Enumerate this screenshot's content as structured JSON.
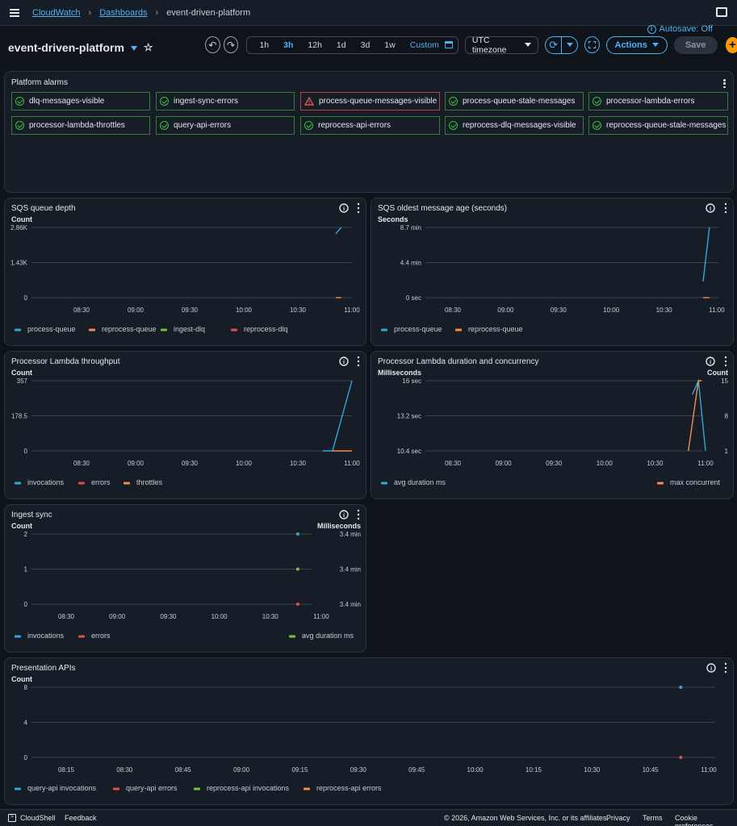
{
  "breadcrumb": {
    "root": "CloudWatch",
    "section": "Dashboards",
    "current": "event-driven-platform"
  },
  "autosave": "Autosave: Off",
  "dashboard": {
    "title": "event-driven-platform"
  },
  "toolbar": {
    "ranges": [
      "1h",
      "3h",
      "12h",
      "1d",
      "3d",
      "1w"
    ],
    "active_range": "3h",
    "custom": "Custom",
    "timezone": "UTC timezone",
    "actions": "Actions",
    "save": "Save"
  },
  "colors": {
    "accent": "#4fb1f5",
    "ok": "#37c137",
    "alarm": "#e04e4e",
    "blue": "#2ea9d9",
    "orange": "#f58b4c",
    "green": "#7ac143",
    "red": "#e04e4e",
    "plus": "#ff9900"
  },
  "alarms": {
    "title": "Platform alarms",
    "items": [
      {
        "name": "dlq-messages-visible",
        "state": "ok"
      },
      {
        "name": "ingest-sync-errors",
        "state": "ok"
      },
      {
        "name": "process-queue-messages-visible",
        "state": "alarm"
      },
      {
        "name": "process-queue-stale-messages",
        "state": "ok"
      },
      {
        "name": "processor-lambda-errors",
        "state": "ok"
      },
      {
        "name": "processor-lambda-throttles",
        "state": "ok"
      },
      {
        "name": "query-api-errors",
        "state": "ok"
      },
      {
        "name": "reprocess-api-errors",
        "state": "ok"
      },
      {
        "name": "reprocess-dlq-messages-visible",
        "state": "ok"
      },
      {
        "name": "reprocess-queue-stale-messages",
        "state": "ok"
      }
    ]
  },
  "chart_data": [
    {
      "id": "sqs-depth",
      "type": "line",
      "title": "SQS queue depth",
      "ylabel": "Count",
      "y_ticks": [
        "2.86K",
        "1.43K",
        "0"
      ],
      "ylim": [
        0,
        2860
      ],
      "x_ticks": [
        "08:30",
        "09:00",
        "09:30",
        "10:00",
        "10:30",
        "11:00"
      ],
      "series": [
        {
          "name": "process-queue",
          "color": "#2ea9d9",
          "points": [
            [
              10.85,
              2600
            ],
            [
              10.9,
              2860
            ]
          ]
        },
        {
          "name": "reprocess-queue",
          "color": "#f58b4c",
          "points": [
            [
              10.85,
              0
            ],
            [
              10.9,
              0
            ]
          ]
        },
        {
          "name": "ingest-dlq",
          "color": "#7ac143",
          "points": []
        },
        {
          "name": "reprocess-dlq",
          "color": "#e04e4e",
          "points": []
        }
      ]
    },
    {
      "id": "sqs-age",
      "type": "line",
      "title": "SQS oldest message age (seconds)",
      "ylabel": "Seconds",
      "y_ticks": [
        "8.7 min",
        "4.4 min",
        "0 sec"
      ],
      "ylim": [
        0,
        8.7
      ],
      "x_ticks": [
        "08:30",
        "09:00",
        "09:30",
        "10:00",
        "10:30",
        "11:00"
      ],
      "series": [
        {
          "name": "process-queue",
          "color": "#2ea9d9",
          "points": [
            [
              10.87,
              2.0
            ],
            [
              10.93,
              8.7
            ]
          ]
        },
        {
          "name": "reprocess-queue",
          "color": "#f58b4c",
          "points": [
            [
              10.87,
              0
            ],
            [
              10.93,
              0
            ]
          ]
        }
      ]
    },
    {
      "id": "lambda-throughput",
      "type": "line",
      "title": "Processor Lambda throughput",
      "ylabel": "Count",
      "y_ticks": [
        "357",
        "178.5",
        "0"
      ],
      "ylim": [
        0,
        357
      ],
      "x_ticks": [
        "08:30",
        "09:00",
        "09:30",
        "10:00",
        "10:30",
        "11:00"
      ],
      "series": [
        {
          "name": "invocations",
          "color": "#2ea9d9",
          "points": [
            [
              10.73,
              0
            ],
            [
              10.82,
              0
            ],
            [
              11.0,
              357
            ]
          ]
        },
        {
          "name": "errors",
          "color": "#e04e4e",
          "points": []
        },
        {
          "name": "throttles",
          "color": "#f58b4c",
          "points": [
            [
              10.82,
              0
            ],
            [
              11.0,
              0
            ]
          ]
        }
      ]
    },
    {
      "id": "lambda-duration",
      "type": "line",
      "title": "Processor Lambda duration and concurrency",
      "ylabel": "Milliseconds",
      "y2label": "Count",
      "y_ticks": [
        "16 sec",
        "13.2 sec",
        "10.4 sec"
      ],
      "y2_ticks": [
        "15",
        "8",
        "1"
      ],
      "x_ticks": [
        "08:30",
        "09:00",
        "09:30",
        "10:00",
        "10:30",
        "11:00"
      ],
      "series": [
        {
          "name": "avg duration ms",
          "color": "#2ea9d9",
          "axis": "left",
          "points": [
            [
              10.87,
              14.9
            ],
            [
              10.93,
              16.0
            ],
            [
              11.0,
              10.4
            ]
          ]
        },
        {
          "name": "max concurrent",
          "color": "#f58b4c",
          "axis": "right",
          "points": [
            [
              10.83,
              1
            ],
            [
              10.93,
              15
            ],
            [
              10.96,
              15
            ]
          ]
        }
      ]
    },
    {
      "id": "ingest-sync",
      "type": "line",
      "title": "Ingest sync",
      "ylabel": "Count",
      "y2label": "Milliseconds",
      "y_ticks": [
        "2",
        "1",
        "0"
      ],
      "y2_ticks": [
        "3.4 min",
        "3.4 min",
        "3.4 min"
      ],
      "x_ticks": [
        "08:30",
        "09:00",
        "09:30",
        "10:00",
        "10:30",
        "11:00"
      ],
      "series": [
        {
          "name": "invocations",
          "color": "#2ea9d9",
          "points": [
            [
              10.77,
              2
            ]
          ]
        },
        {
          "name": "errors",
          "color": "#e04e4e",
          "points": [
            [
              10.77,
              0
            ]
          ]
        },
        {
          "name": "avg duration ms",
          "color": "#7ac143",
          "points": [
            [
              10.77,
              1
            ]
          ]
        }
      ]
    },
    {
      "id": "presentation-apis",
      "type": "line",
      "title": "Presentation APIs",
      "ylabel": "Count",
      "y_ticks": [
        "8",
        "4",
        "0"
      ],
      "ylim": [
        0,
        8
      ],
      "x_ticks": [
        "08:15",
        "08:30",
        "08:45",
        "09:00",
        "09:15",
        "09:30",
        "09:45",
        "10:00",
        "10:15",
        "10:30",
        "10:45",
        "11:00"
      ],
      "series": [
        {
          "name": "query-api invocations",
          "color": "#2ea9d9",
          "points": [
            [
              10.88,
              8
            ]
          ]
        },
        {
          "name": "query-api errors",
          "color": "#e04e4e",
          "points": [
            [
              10.88,
              0
            ]
          ]
        },
        {
          "name": "reprocess-api invocations",
          "color": "#7ac143",
          "points": []
        },
        {
          "name": "reprocess-api errors",
          "color": "#f58b4c",
          "points": []
        }
      ]
    }
  ],
  "footer": {
    "cloudshell": "CloudShell",
    "feedback": "Feedback",
    "copyright": "© 2026, Amazon Web Services, Inc. or its affiliates.",
    "privacy": "Privacy",
    "terms": "Terms",
    "cookies": "Cookie preferences"
  }
}
